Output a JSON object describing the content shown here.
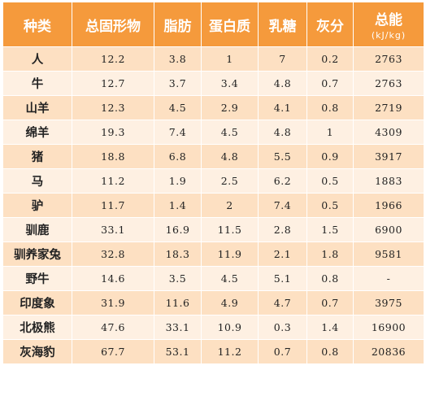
{
  "table": {
    "headers": [
      "种类",
      "总固形物",
      "脂肪",
      "蛋白质",
      "乳糖",
      "灰分",
      "总能"
    ],
    "energy_unit": "(kJ/kg)",
    "rows": [
      [
        "人",
        "12.2",
        "3.8",
        "1",
        "7",
        "0.2",
        "2763"
      ],
      [
        "牛",
        "12.7",
        "3.7",
        "3.4",
        "4.8",
        "0.7",
        "2763"
      ],
      [
        "山羊",
        "12.3",
        "4.5",
        "2.9",
        "4.1",
        "0.8",
        "2719"
      ],
      [
        "绵羊",
        "19.3",
        "7.4",
        "4.5",
        "4.8",
        "1",
        "4309"
      ],
      [
        "猪",
        "18.8",
        "6.8",
        "4.8",
        "5.5",
        "0.9",
        "3917"
      ],
      [
        "马",
        "11.2",
        "1.9",
        "2.5",
        "6.2",
        "0.5",
        "1883"
      ],
      [
        "驴",
        "11.7",
        "1.4",
        "2",
        "7.4",
        "0.5",
        "1966"
      ],
      [
        "驯鹿",
        "33.1",
        "16.9",
        "11.5",
        "2.8",
        "1.5",
        "6900"
      ],
      [
        "驯养家兔",
        "32.8",
        "18.3",
        "11.9",
        "2.1",
        "1.8",
        "9581"
      ],
      [
        "野牛",
        "14.6",
        "3.5",
        "4.5",
        "5.1",
        "0.8",
        "-"
      ],
      [
        "印度象",
        "31.9",
        "11.6",
        "4.9",
        "4.7",
        "0.7",
        "3975"
      ],
      [
        "北极熊",
        "47.6",
        "33.1",
        "10.9",
        "0.3",
        "1.4",
        "16900"
      ],
      [
        "灰海豹",
        "67.7",
        "53.1",
        "11.2",
        "0.7",
        "0.8",
        "20836"
      ]
    ]
  },
  "colors": {
    "header_bg": "#f59a3c",
    "row_odd": "#fde0c2",
    "row_even": "#fef0e2"
  }
}
